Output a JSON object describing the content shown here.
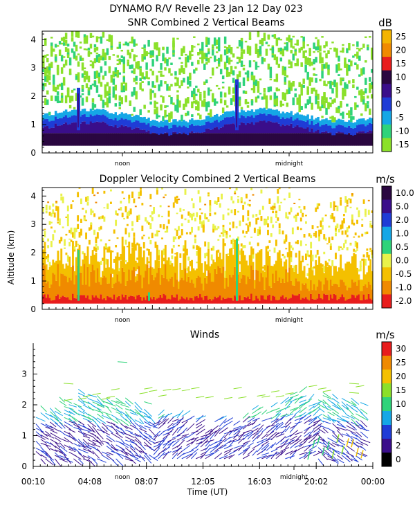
{
  "figure": {
    "title_line1": "DYNAMO R/V Revelle  23 Jan 12 Day 023",
    "shared_ylabel": "Altitude (km)",
    "shared_xlabel": "Time (UT)"
  },
  "chart_data": [
    {
      "type": "heatmap",
      "title": "SNR Combined 2 Vertical Beams",
      "ylabel": "Altitude (km)",
      "ylim": [
        0,
        4.3
      ],
      "yticks": [
        "0",
        "1",
        "2",
        "3",
        "4"
      ],
      "x_markers": [
        "noon",
        "midnight"
      ],
      "colorbar": {
        "unit": "dB",
        "ticks": [
          "25",
          "20",
          "15",
          "10",
          "5",
          "0",
          "-5",
          "-10",
          "-15"
        ],
        "colors": [
          "#f4b400",
          "#f08a00",
          "#e81d1d",
          "#2a0740",
          "#3a0e8a",
          "#1f3cd6",
          "#15a7e6",
          "#2fd37a",
          "#8be02a"
        ]
      }
    },
    {
      "type": "heatmap",
      "title": "Doppler Velocity Combined 2 Vertical Beams",
      "ylabel": "Altitude (km)",
      "ylim": [
        0,
        4.3
      ],
      "yticks": [
        "0",
        "1",
        "2",
        "3",
        "4"
      ],
      "x_markers": [
        "noon",
        "midnight"
      ],
      "colorbar": {
        "unit": "m/s",
        "ticks": [
          "10.0",
          "5.0",
          "2.0",
          "1.0",
          "0.5",
          "0.0",
          "-0.5",
          "-1.0",
          "-2.0"
        ],
        "colors": [
          "#2a0740",
          "#3a0e8a",
          "#1f3cd6",
          "#15a7e6",
          "#2fd37a",
          "#e9f24a",
          "#f4c000",
          "#f08a00",
          "#e81d1d"
        ]
      }
    },
    {
      "type": "scatter",
      "title": "Winds",
      "ylabel": "Altitude (km)",
      "ylim": [
        0,
        4.0
      ],
      "yticks": [
        "0",
        "1",
        "2",
        "3"
      ],
      "x_markers": [
        "noon",
        "midnight"
      ],
      "xticks": [
        "00:10",
        "04:08",
        "08:07",
        "12:05",
        "16:03",
        "20:02",
        "00:00"
      ],
      "xlabel": "Time (UT)",
      "colorbar": {
        "unit": "m/s",
        "ticks": [
          "30",
          "25",
          "20",
          "15",
          "10",
          "8",
          "4",
          "2",
          "0"
        ],
        "colors": [
          "#e81d1d",
          "#f08a00",
          "#f4c000",
          "#8be02a",
          "#2fd37a",
          "#15a7e6",
          "#1f3cd6",
          "#3a0e8a",
          "#000000"
        ]
      }
    }
  ]
}
